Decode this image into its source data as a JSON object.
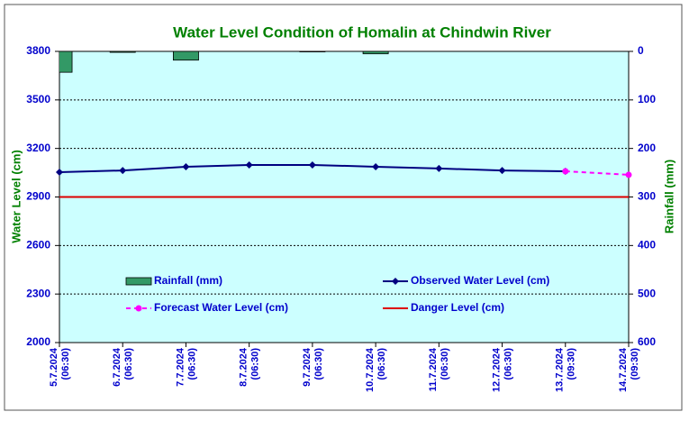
{
  "chart_data": {
    "type": "combo",
    "title": "Water Level Condition of Homalin at Chindwin River",
    "y_label": "Water Level (cm)",
    "y2_label": "Rainfall (mm)",
    "categories": [
      [
        "5.7.2024",
        "(06:30)"
      ],
      [
        "6.7.2024",
        "(06:30)"
      ],
      [
        "7.7.2024",
        "(06:30)"
      ],
      [
        "8.7.2024",
        "(06:30)"
      ],
      [
        "9.7.2024",
        "(06:30)"
      ],
      [
        "10.7.2024",
        "(06:30)"
      ],
      [
        "11.7.2024",
        "(06:30)"
      ],
      [
        "12.7.2024",
        "(06:30)"
      ],
      [
        "13.7.2024",
        "(09:30)"
      ],
      [
        "14.7.2024",
        "(09:30)"
      ]
    ],
    "ylim": [
      2000,
      3800
    ],
    "yticks": [
      2000,
      2300,
      2600,
      2900,
      3200,
      3500,
      3800
    ],
    "y2lim": [
      600,
      0
    ],
    "y2ticks": [
      0,
      100,
      200,
      300,
      400,
      500,
      600
    ],
    "grid": true,
    "series": [
      {
        "name": "Rainfall (mm)",
        "type": "bar",
        "axis": "y2",
        "color": "#339966",
        "values": [
          43,
          2,
          18,
          0,
          1,
          5,
          0,
          0,
          0,
          0
        ]
      },
      {
        "name": "Observed Water Level (cm)",
        "type": "line",
        "marker": "diamond",
        "color": "#000080",
        "values": [
          3053,
          3064,
          3087,
          3098,
          3098,
          3087,
          3076,
          3064,
          3059,
          null
        ]
      },
      {
        "name": "Forecast Water Level (cm)",
        "type": "line",
        "marker": "circle",
        "dash": true,
        "color": "#ff00ff",
        "values": [
          null,
          null,
          null,
          null,
          null,
          null,
          null,
          null,
          3059,
          3037
        ]
      },
      {
        "name": "Danger Level (cm)",
        "type": "line",
        "color": "#dd0000",
        "values": [
          2900,
          2900,
          2900,
          2900,
          2900,
          2900,
          2900,
          2900,
          2900,
          2900
        ]
      }
    ]
  }
}
